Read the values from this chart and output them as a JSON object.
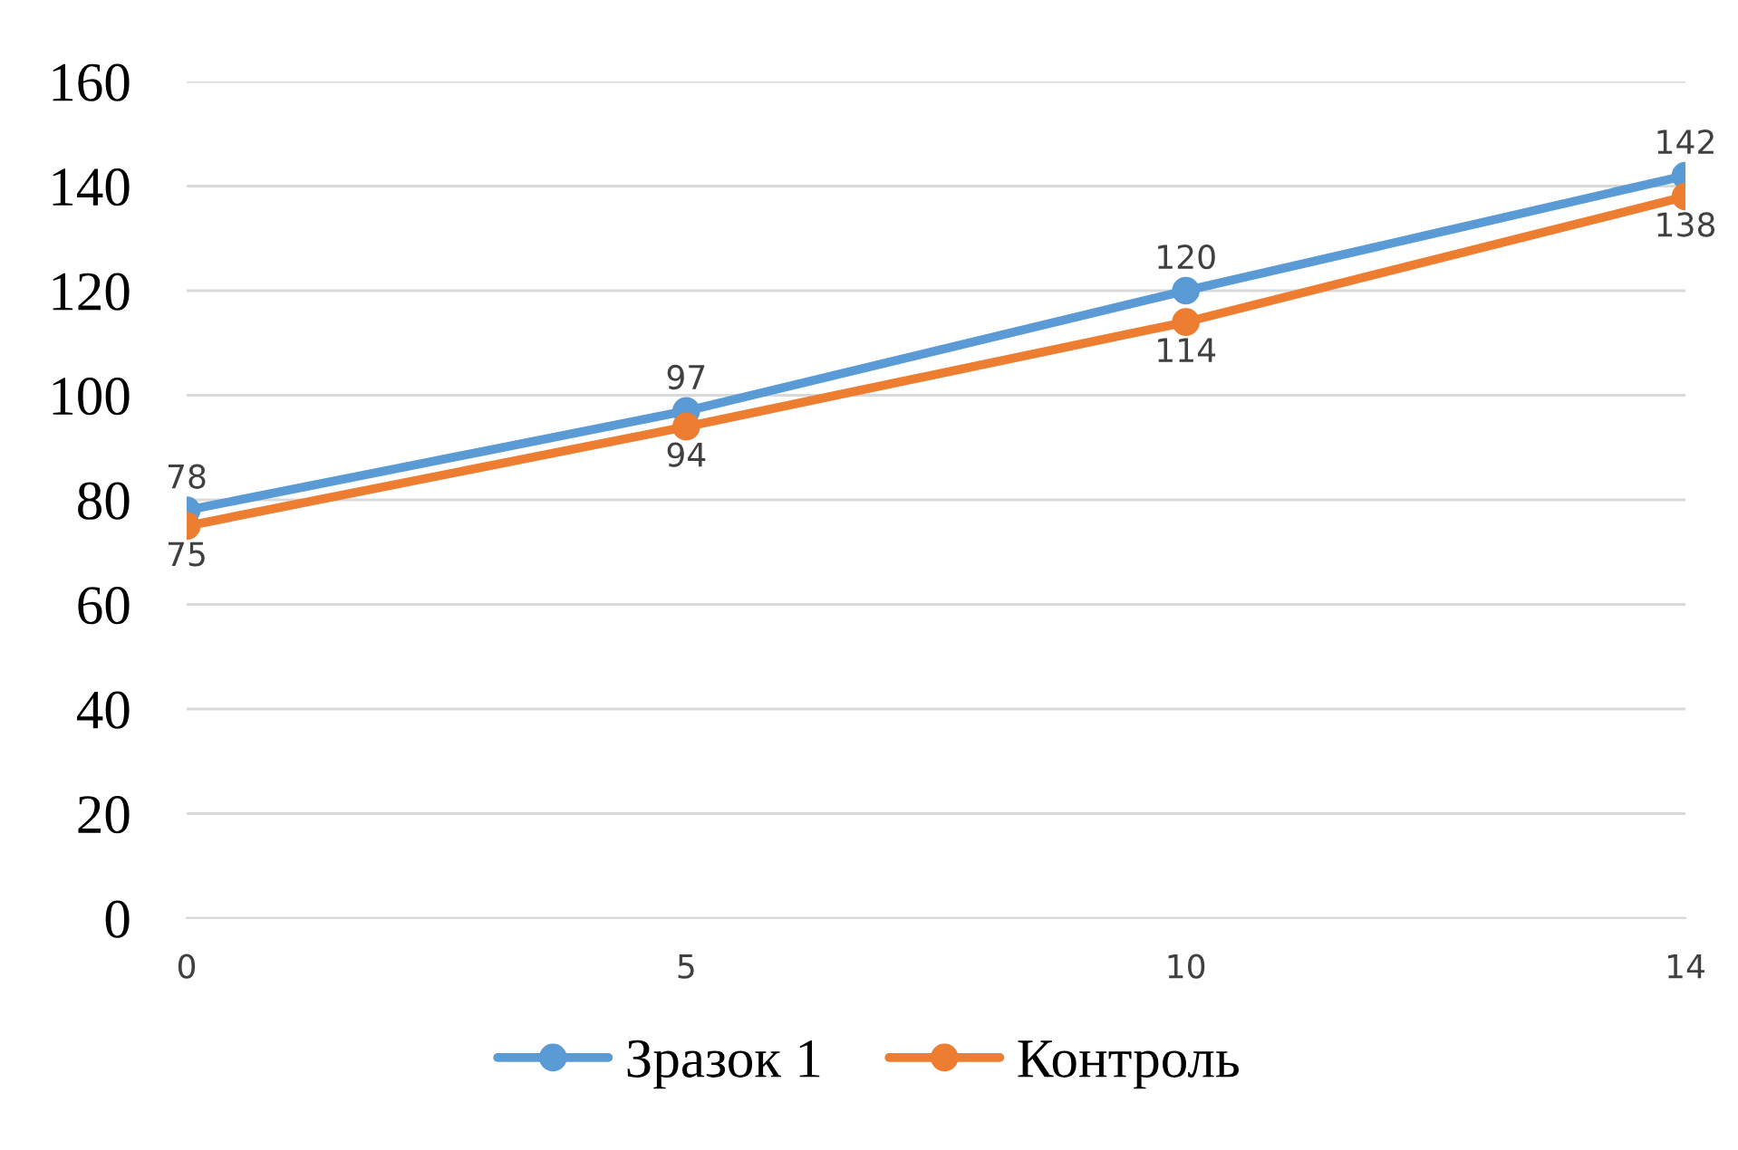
{
  "chart_data": {
    "type": "line",
    "categories": [
      "0",
      "5",
      "10",
      "14"
    ],
    "series": [
      {
        "name": "Зразок 1",
        "color": "#5b9bd5",
        "values": [
          78,
          97,
          120,
          142
        ]
      },
      {
        "name": "Контроль",
        "color": "#ed7d31",
        "values": [
          75,
          94,
          114,
          138
        ]
      }
    ],
    "ylim": [
      0,
      160
    ],
    "yticks": [
      0,
      20,
      40,
      60,
      80,
      100,
      120,
      140,
      160
    ],
    "grid": "y",
    "legend": "bottom",
    "marker": "circle",
    "line_style": "solid",
    "data_labels": true
  }
}
